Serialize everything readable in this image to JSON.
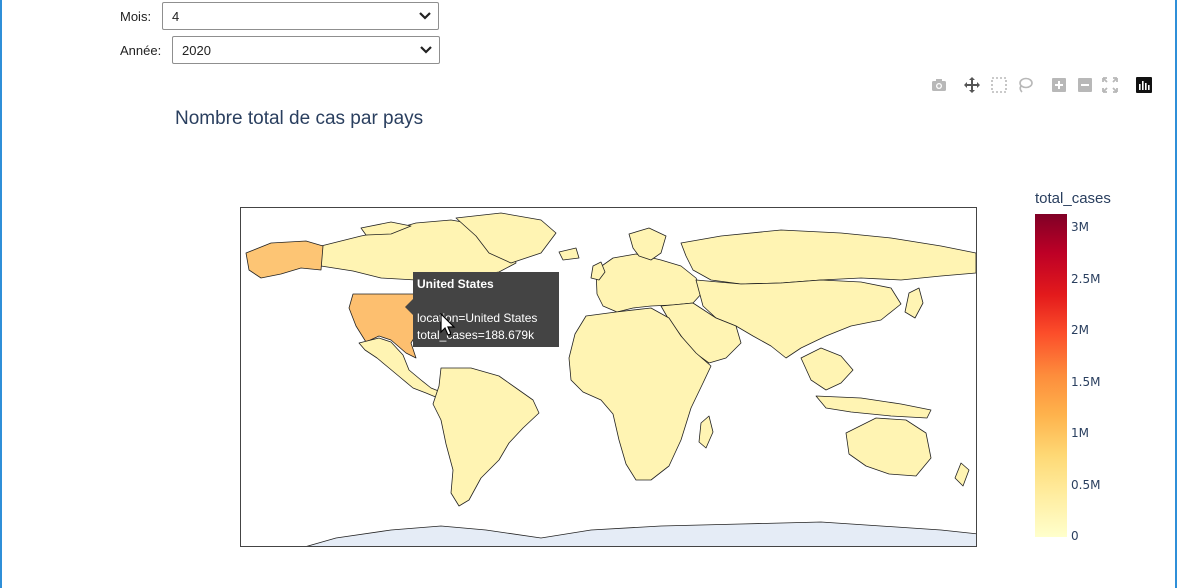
{
  "filters": {
    "month": {
      "label": "Mois:",
      "value": "4"
    },
    "year": {
      "label": "Année:",
      "value": "2020"
    }
  },
  "modebar": {
    "icons": [
      "camera-icon",
      "pan-icon",
      "box-select-icon",
      "lasso-icon",
      "zoom-in-icon",
      "zoom-out-icon",
      "autoscale-icon",
      "plotly-logo-icon"
    ]
  },
  "chart_data": {
    "type": "choropleth",
    "title": "Nombre total de cas par pays",
    "colorbar": {
      "title": "total_cases",
      "ticks": [
        "3M",
        "2.5M",
        "2M",
        "1.5M",
        "1M",
        "0.5M",
        "0"
      ],
      "colorscale": [
        "#ffffcc",
        "#ffeda0",
        "#fed976",
        "#feb24c",
        "#fd8d3c",
        "#fc4e2a",
        "#e31a1c",
        "#bd0026",
        "#800026"
      ]
    },
    "hover": {
      "title": "United States",
      "line1": "location=United States",
      "line2": "total_cases=188.679k"
    },
    "colors": {
      "land_default": "#fff4b3",
      "highlight": "#fdbf6f",
      "ocean": "#ffffff",
      "antarctica": "#e5ecf6"
    }
  }
}
